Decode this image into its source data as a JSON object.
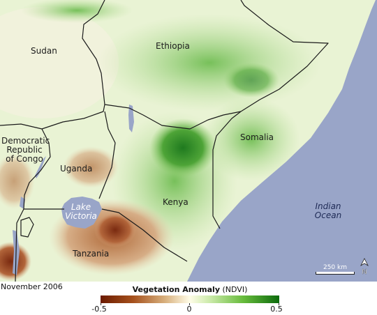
{
  "map": {
    "countries": [
      {
        "id": "sudan",
        "name": "Sudan"
      },
      {
        "id": "ethiopia",
        "name": "Ethiopia"
      },
      {
        "id": "somalia",
        "name": "Somalia"
      },
      {
        "id": "drc",
        "name": "Democratic\nRepublic\nof Congo"
      },
      {
        "id": "uganda",
        "name": "Uganda"
      },
      {
        "id": "kenya",
        "name": "Kenya"
      },
      {
        "id": "tanzania",
        "name": "Tanzania"
      }
    ],
    "water": {
      "lake": "Lake\nVictoria",
      "ocean": "Indian\nOcean"
    },
    "scale_bar": "250 km",
    "north_label": "N",
    "colors": {
      "ocean": "#99a5c8",
      "lake": "#99a5c8",
      "border": "#1a1a1a"
    }
  },
  "caption": {
    "date": "November 2006"
  },
  "legend": {
    "title": "Vegetation Anomaly",
    "units": "(NDVI)",
    "min": "-0.5",
    "mid": "0",
    "max": "0.5",
    "colors": {
      "negative": "#6b1a00",
      "neutral": "#fffde8",
      "positive": "#0d6b0d"
    }
  }
}
